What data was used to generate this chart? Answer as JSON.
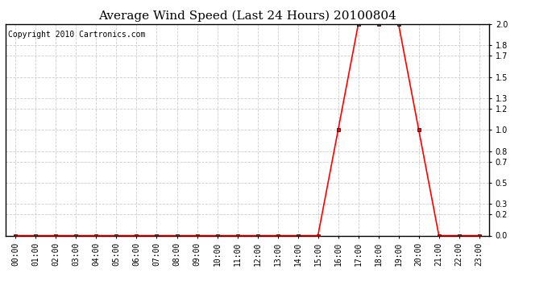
{
  "title": "Average Wind Speed (Last 24 Hours) 20100804",
  "copyright": "Copyright 2010 Cartronics.com",
  "line_color": "red",
  "marker": "s",
  "marker_size": 2.5,
  "background_color": "#ffffff",
  "grid_color": "#cccccc",
  "x_labels": [
    "00:00",
    "01:00",
    "02:00",
    "03:00",
    "04:00",
    "05:00",
    "06:00",
    "07:00",
    "08:00",
    "09:00",
    "10:00",
    "11:00",
    "12:00",
    "13:00",
    "14:00",
    "15:00",
    "16:00",
    "17:00",
    "18:00",
    "19:00",
    "20:00",
    "21:00",
    "22:00",
    "23:00"
  ],
  "x_values": [
    0,
    1,
    2,
    3,
    4,
    5,
    6,
    7,
    8,
    9,
    10,
    11,
    12,
    13,
    14,
    15,
    16,
    17,
    18,
    19,
    20,
    21,
    22,
    23
  ],
  "y_values": [
    0,
    0,
    0,
    0,
    0,
    0,
    0,
    0,
    0,
    0,
    0,
    0,
    0,
    0,
    0,
    0,
    1.0,
    2.0,
    2.0,
    2.0,
    1.0,
    0,
    0,
    0
  ],
  "ylim": [
    0,
    2.0
  ],
  "yticks": [
    0.0,
    0.2,
    0.3,
    0.5,
    0.7,
    0.8,
    1.0,
    1.2,
    1.3,
    1.5,
    1.7,
    1.8,
    2.0
  ],
  "title_fontsize": 11,
  "copyright_fontsize": 7,
  "tick_fontsize": 7
}
